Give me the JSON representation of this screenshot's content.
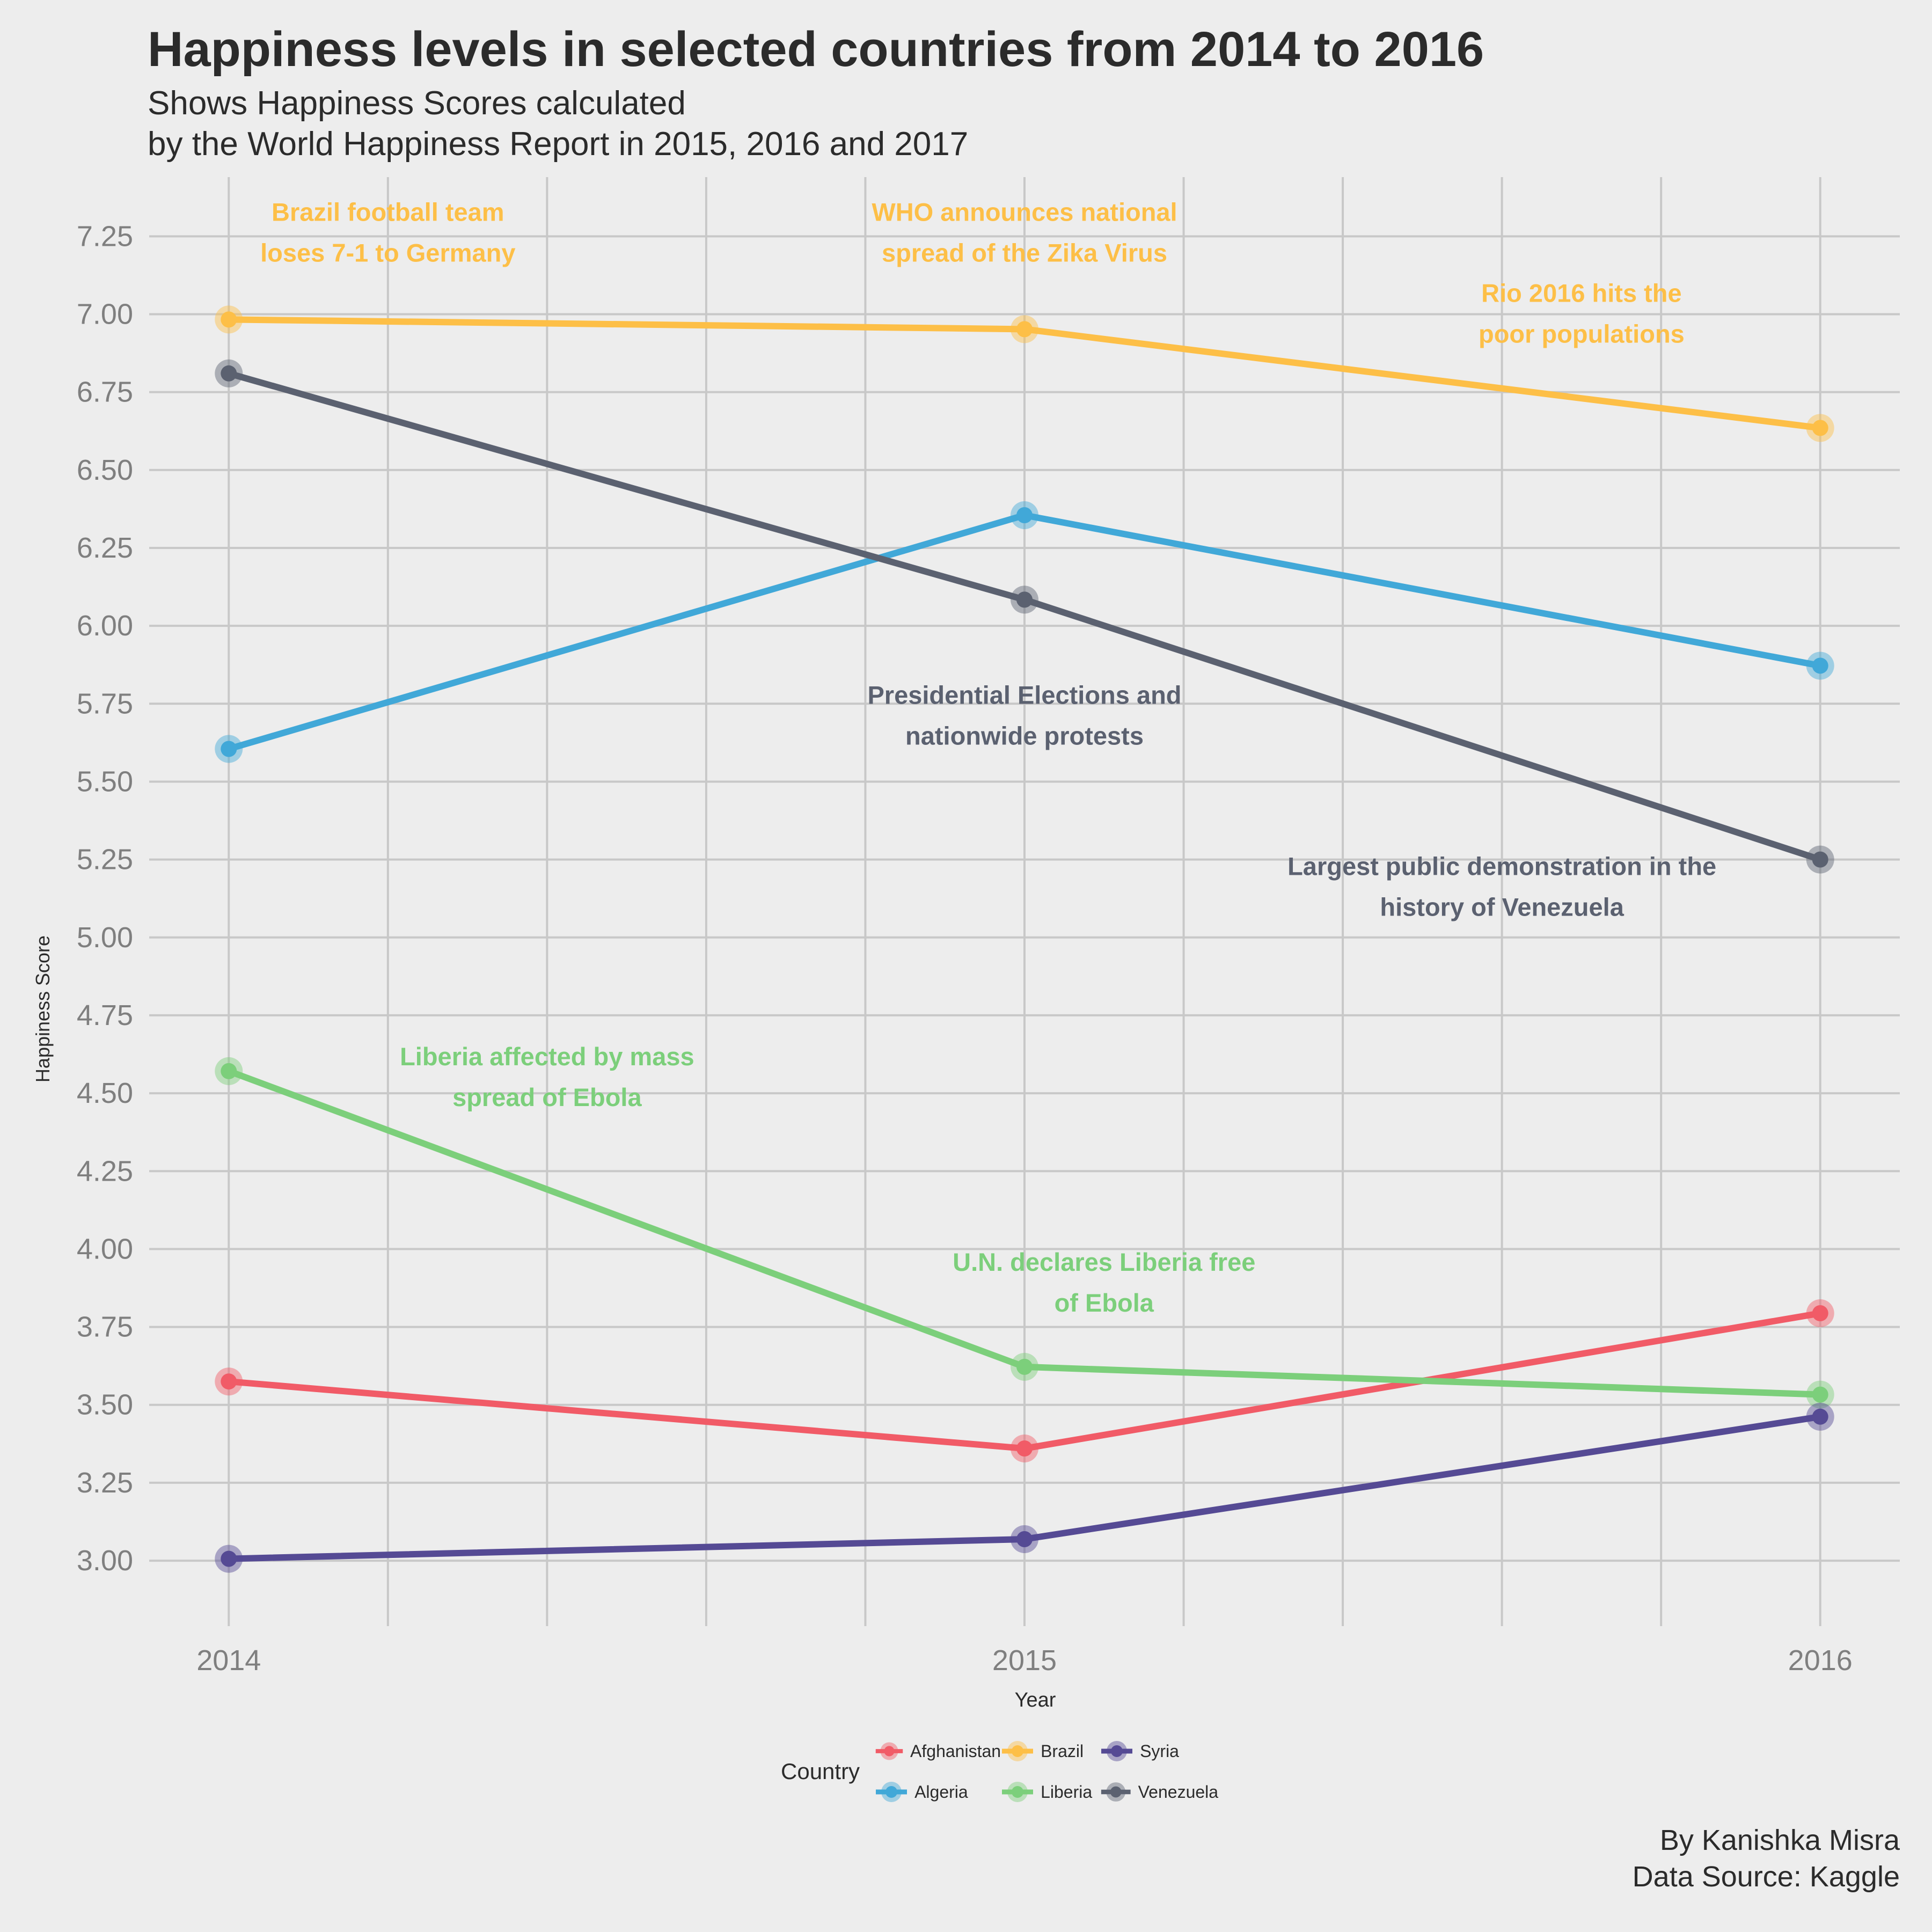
{
  "title": "Happiness levels in selected countries from 2014 to 2016",
  "subtitle_lines": [
    "Shows Happiness Scores calculated",
    "by the World Happiness Report in 2015, 2016 and 2017"
  ],
  "caption_lines": [
    "By Kanishka Misra",
    "Data Source: Kaggle"
  ],
  "legend_title": "Country",
  "chart_data": {
    "type": "line",
    "xlabel": "Year",
    "ylabel": "Happiness Score",
    "x": [
      2014,
      2015,
      2016
    ],
    "x_ticks": [
      "2014",
      "2015",
      "2016"
    ],
    "xlim": [
      2013.9,
      2016.1
    ],
    "ylim": [
      2.79,
      7.44
    ],
    "y_ticks": [
      "3.00",
      "3.25",
      "3.50",
      "3.75",
      "4.00",
      "4.25",
      "4.50",
      "4.75",
      "5.00",
      "5.25",
      "5.50",
      "5.75",
      "6.00",
      "6.25",
      "6.50",
      "6.75",
      "7.00",
      "7.25"
    ],
    "grid": true,
    "legend_position": "bottom",
    "series": [
      {
        "name": "Afghanistan",
        "color": "#f15b67",
        "values": [
          3.575,
          3.36,
          3.794
        ]
      },
      {
        "name": "Algeria",
        "color": "#41a8d8",
        "values": [
          5.605,
          6.355,
          5.872
        ]
      },
      {
        "name": "Brazil",
        "color": "#fdbf47",
        "values": [
          6.983,
          6.952,
          6.635
        ]
      },
      {
        "name": "Liberia",
        "color": "#7ccf7b",
        "values": [
          4.571,
          3.622,
          3.533
        ]
      },
      {
        "name": "Syria",
        "color": "#554a94",
        "values": [
          3.006,
          3.069,
          3.462
        ]
      },
      {
        "name": "Venezuela",
        "color": "#5b6170",
        "values": [
          6.81,
          6.084,
          5.25
        ]
      }
    ],
    "annotations": [
      {
        "lines": [
          "Brazil football team",
          "loses 7-1 to Germany"
        ],
        "x": 2014.2,
        "y": 7.3,
        "color": "#fdbf47"
      },
      {
        "lines": [
          "WHO announces national",
          "spread of the Zika Virus"
        ],
        "x": 2015.0,
        "y": 7.3,
        "color": "#fdbf47"
      },
      {
        "lines": [
          "Rio 2016 hits the",
          "poor populations"
        ],
        "x": 2015.7,
        "y": 7.04,
        "color": "#fdbf47"
      },
      {
        "lines": [
          "Presidential Elections and",
          "nationwide protests"
        ],
        "x": 2015.0,
        "y": 5.75,
        "color": "#5b6170"
      },
      {
        "lines": [
          "Largest public demonstration in the",
          "history of Venezuela"
        ],
        "x": 2015.6,
        "y": 5.2,
        "color": "#5b6170"
      },
      {
        "lines": [
          "Liberia affected by mass",
          "spread of Ebola"
        ],
        "x": 2014.4,
        "y": 4.59,
        "color": "#7ccf7b"
      },
      {
        "lines": [
          "U.N. declares Liberia free",
          "of Ebola"
        ],
        "x": 2015.1,
        "y": 3.93,
        "color": "#7ccf7b"
      }
    ]
  }
}
